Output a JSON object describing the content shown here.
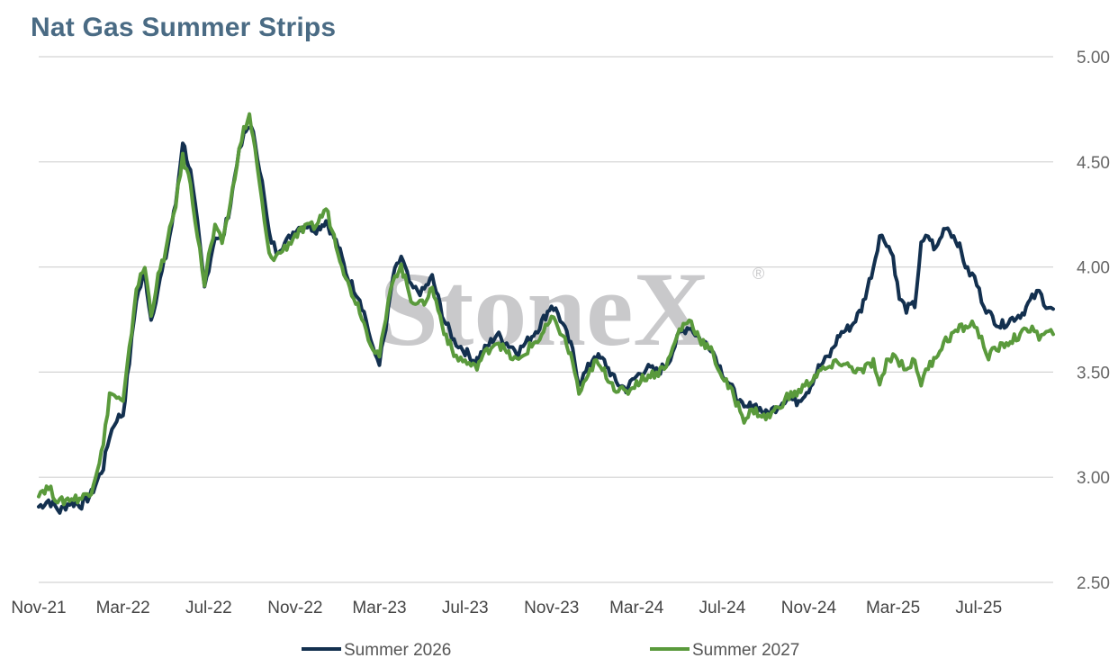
{
  "chart_data": {
    "type": "line",
    "title": "Nat Gas Summer Strips",
    "watermark": "StoneX",
    "ylim": [
      2.5,
      5.0
    ],
    "yticks": [
      "2.50",
      "3.00",
      "3.50",
      "4.00",
      "4.50",
      "5.00"
    ],
    "y_axis_side": "right",
    "grid": "horizontal",
    "legend_position": "bottom",
    "x_labels": [
      "Nov-21",
      "Mar-22",
      "Jul-22",
      "Nov-22",
      "Mar-23",
      "Jul-23",
      "Nov-23",
      "Mar-24",
      "Jul-24",
      "Nov-24",
      "Mar-25",
      "Jul-25"
    ],
    "x_start": "2021-11-01",
    "x_end": "2025-10-15",
    "series": [
      {
        "name": "Summer 2026",
        "color": "#13304f",
        "points": [
          [
            "2021-11-01",
            2.86
          ],
          [
            "2021-11-15",
            2.89
          ],
          [
            "2021-12-01",
            2.84
          ],
          [
            "2021-12-15",
            2.88
          ],
          [
            "2022-01-01",
            2.87
          ],
          [
            "2022-01-15",
            2.92
          ],
          [
            "2022-02-01",
            3.05
          ],
          [
            "2022-02-10",
            3.2
          ],
          [
            "2022-02-20",
            3.28
          ],
          [
            "2022-03-01",
            3.3
          ],
          [
            "2022-03-10",
            3.55
          ],
          [
            "2022-03-20",
            3.85
          ],
          [
            "2022-04-01",
            3.97
          ],
          [
            "2022-04-10",
            3.75
          ],
          [
            "2022-04-20",
            3.9
          ],
          [
            "2022-05-01",
            4.05
          ],
          [
            "2022-05-15",
            4.3
          ],
          [
            "2022-05-25",
            4.6
          ],
          [
            "2022-06-05",
            4.45
          ],
          [
            "2022-06-15",
            4.2
          ],
          [
            "2022-06-25",
            3.9
          ],
          [
            "2022-07-01",
            4.0
          ],
          [
            "2022-07-10",
            4.15
          ],
          [
            "2022-07-20",
            4.12
          ],
          [
            "2022-08-01",
            4.3
          ],
          [
            "2022-08-10",
            4.5
          ],
          [
            "2022-08-20",
            4.62
          ],
          [
            "2022-08-28",
            4.68
          ],
          [
            "2022-09-05",
            4.6
          ],
          [
            "2022-09-15",
            4.4
          ],
          [
            "2022-09-25",
            4.15
          ],
          [
            "2022-10-05",
            4.08
          ],
          [
            "2022-10-20",
            4.12
          ],
          [
            "2022-11-01",
            4.18
          ],
          [
            "2022-11-15",
            4.2
          ],
          [
            "2022-12-01",
            4.18
          ],
          [
            "2022-12-15",
            4.22
          ],
          [
            "2023-01-01",
            4.1
          ],
          [
            "2023-01-15",
            3.95
          ],
          [
            "2023-02-01",
            3.85
          ],
          [
            "2023-02-10",
            3.75
          ],
          [
            "2023-02-20",
            3.6
          ],
          [
            "2023-03-01",
            3.55
          ],
          [
            "2023-03-10",
            3.7
          ],
          [
            "2023-03-20",
            3.95
          ],
          [
            "2023-04-01",
            4.05
          ],
          [
            "2023-04-15",
            3.9
          ],
          [
            "2023-05-01",
            3.88
          ],
          [
            "2023-05-15",
            3.95
          ],
          [
            "2023-06-01",
            3.75
          ],
          [
            "2023-06-15",
            3.65
          ],
          [
            "2023-07-01",
            3.6
          ],
          [
            "2023-07-15",
            3.55
          ],
          [
            "2023-08-01",
            3.62
          ],
          [
            "2023-08-15",
            3.68
          ],
          [
            "2023-09-01",
            3.63
          ],
          [
            "2023-09-15",
            3.6
          ],
          [
            "2023-10-01",
            3.66
          ],
          [
            "2023-10-15",
            3.72
          ],
          [
            "2023-11-01",
            3.82
          ],
          [
            "2023-11-10",
            3.78
          ],
          [
            "2023-11-20",
            3.7
          ],
          [
            "2023-12-01",
            3.6
          ],
          [
            "2023-12-10",
            3.45
          ],
          [
            "2023-12-20",
            3.5
          ],
          [
            "2024-01-01",
            3.58
          ],
          [
            "2024-01-15",
            3.55
          ],
          [
            "2024-02-01",
            3.45
          ],
          [
            "2024-02-15",
            3.42
          ],
          [
            "2024-03-01",
            3.48
          ],
          [
            "2024-03-15",
            3.52
          ],
          [
            "2024-04-01",
            3.5
          ],
          [
            "2024-04-15",
            3.55
          ],
          [
            "2024-05-01",
            3.68
          ],
          [
            "2024-05-15",
            3.72
          ],
          [
            "2024-06-01",
            3.65
          ],
          [
            "2024-06-15",
            3.62
          ],
          [
            "2024-07-01",
            3.5
          ],
          [
            "2024-07-15",
            3.42
          ],
          [
            "2024-08-01",
            3.32
          ],
          [
            "2024-08-15",
            3.35
          ],
          [
            "2024-09-01",
            3.3
          ],
          [
            "2024-09-15",
            3.33
          ],
          [
            "2024-10-01",
            3.38
          ],
          [
            "2024-10-15",
            3.36
          ],
          [
            "2024-11-01",
            3.42
          ],
          [
            "2024-11-15",
            3.52
          ],
          [
            "2024-12-01",
            3.58
          ],
          [
            "2024-12-15",
            3.68
          ],
          [
            "2025-01-01",
            3.72
          ],
          [
            "2025-01-15",
            3.8
          ],
          [
            "2025-02-01",
            4.0
          ],
          [
            "2025-02-10",
            4.15
          ],
          [
            "2025-02-20",
            4.12
          ],
          [
            "2025-03-01",
            4.05
          ],
          [
            "2025-03-10",
            3.85
          ],
          [
            "2025-03-20",
            3.8
          ],
          [
            "2025-04-01",
            3.82
          ],
          [
            "2025-04-10",
            4.1
          ],
          [
            "2025-04-20",
            4.15
          ],
          [
            "2025-05-01",
            4.08
          ],
          [
            "2025-05-15",
            4.2
          ],
          [
            "2025-06-01",
            4.12
          ],
          [
            "2025-06-15",
            3.98
          ],
          [
            "2025-06-25",
            3.95
          ],
          [
            "2025-07-05",
            3.85
          ],
          [
            "2025-07-15",
            3.78
          ],
          [
            "2025-08-01",
            3.72
          ],
          [
            "2025-08-15",
            3.75
          ],
          [
            "2025-09-01",
            3.78
          ],
          [
            "2025-09-15",
            3.85
          ],
          [
            "2025-09-25",
            3.88
          ],
          [
            "2025-10-05",
            3.82
          ],
          [
            "2025-10-15",
            3.8
          ]
        ]
      },
      {
        "name": "Summer 2027",
        "color": "#5a9a3c",
        "points": [
          [
            "2021-11-01",
            2.93
          ],
          [
            "2021-11-15",
            2.95
          ],
          [
            "2021-12-01",
            2.88
          ],
          [
            "2021-12-15",
            2.9
          ],
          [
            "2022-01-01",
            2.9
          ],
          [
            "2022-01-15",
            2.94
          ],
          [
            "2022-02-01",
            3.15
          ],
          [
            "2022-02-10",
            3.4
          ],
          [
            "2022-02-20",
            3.38
          ],
          [
            "2022-03-01",
            3.35
          ],
          [
            "2022-03-10",
            3.6
          ],
          [
            "2022-03-20",
            3.9
          ],
          [
            "2022-04-01",
            4.0
          ],
          [
            "2022-04-10",
            3.78
          ],
          [
            "2022-04-20",
            3.95
          ],
          [
            "2022-05-01",
            4.08
          ],
          [
            "2022-05-15",
            4.3
          ],
          [
            "2022-05-25",
            4.52
          ],
          [
            "2022-06-05",
            4.4
          ],
          [
            "2022-06-15",
            4.15
          ],
          [
            "2022-06-25",
            3.92
          ],
          [
            "2022-07-01",
            4.05
          ],
          [
            "2022-07-10",
            4.18
          ],
          [
            "2022-07-20",
            4.12
          ],
          [
            "2022-08-01",
            4.3
          ],
          [
            "2022-08-10",
            4.5
          ],
          [
            "2022-08-20",
            4.65
          ],
          [
            "2022-08-28",
            4.72
          ],
          [
            "2022-09-05",
            4.55
          ],
          [
            "2022-09-15",
            4.3
          ],
          [
            "2022-09-25",
            4.05
          ],
          [
            "2022-10-05",
            4.05
          ],
          [
            "2022-10-20",
            4.1
          ],
          [
            "2022-11-01",
            4.15
          ],
          [
            "2022-11-15",
            4.18
          ],
          [
            "2022-12-01",
            4.2
          ],
          [
            "2022-12-15",
            4.28
          ],
          [
            "2023-01-01",
            4.08
          ],
          [
            "2023-01-15",
            3.92
          ],
          [
            "2023-02-01",
            3.8
          ],
          [
            "2023-02-10",
            3.7
          ],
          [
            "2023-02-20",
            3.62
          ],
          [
            "2023-03-01",
            3.58
          ],
          [
            "2023-03-10",
            3.75
          ],
          [
            "2023-03-20",
            3.95
          ],
          [
            "2023-04-01",
            4.0
          ],
          [
            "2023-04-15",
            3.85
          ],
          [
            "2023-05-01",
            3.82
          ],
          [
            "2023-05-15",
            3.9
          ],
          [
            "2023-06-01",
            3.7
          ],
          [
            "2023-06-15",
            3.58
          ],
          [
            "2023-07-01",
            3.55
          ],
          [
            "2023-07-15",
            3.52
          ],
          [
            "2023-08-01",
            3.6
          ],
          [
            "2023-08-15",
            3.65
          ],
          [
            "2023-09-01",
            3.58
          ],
          [
            "2023-09-15",
            3.55
          ],
          [
            "2023-10-01",
            3.62
          ],
          [
            "2023-10-15",
            3.66
          ],
          [
            "2023-11-01",
            3.75
          ],
          [
            "2023-11-10",
            3.72
          ],
          [
            "2023-11-20",
            3.65
          ],
          [
            "2023-12-01",
            3.55
          ],
          [
            "2023-12-10",
            3.4
          ],
          [
            "2023-12-20",
            3.45
          ],
          [
            "2024-01-01",
            3.55
          ],
          [
            "2024-01-15",
            3.5
          ],
          [
            "2024-02-01",
            3.42
          ],
          [
            "2024-02-15",
            3.4
          ],
          [
            "2024-03-01",
            3.45
          ],
          [
            "2024-03-15",
            3.48
          ],
          [
            "2024-04-01",
            3.5
          ],
          [
            "2024-04-15",
            3.55
          ],
          [
            "2024-05-01",
            3.7
          ],
          [
            "2024-05-15",
            3.75
          ],
          [
            "2024-06-01",
            3.65
          ],
          [
            "2024-06-15",
            3.6
          ],
          [
            "2024-07-01",
            3.48
          ],
          [
            "2024-07-15",
            3.4
          ],
          [
            "2024-08-01",
            3.28
          ],
          [
            "2024-08-15",
            3.32
          ],
          [
            "2024-09-01",
            3.28
          ],
          [
            "2024-09-15",
            3.32
          ],
          [
            "2024-10-01",
            3.38
          ],
          [
            "2024-10-15",
            3.4
          ],
          [
            "2024-11-01",
            3.45
          ],
          [
            "2024-11-15",
            3.5
          ],
          [
            "2024-12-01",
            3.52
          ],
          [
            "2024-12-15",
            3.55
          ],
          [
            "2025-01-01",
            3.52
          ],
          [
            "2025-01-15",
            3.5
          ],
          [
            "2025-02-01",
            3.55
          ],
          [
            "2025-02-10",
            3.42
          ],
          [
            "2025-02-20",
            3.55
          ],
          [
            "2025-03-01",
            3.58
          ],
          [
            "2025-03-10",
            3.55
          ],
          [
            "2025-03-20",
            3.52
          ],
          [
            "2025-04-01",
            3.55
          ],
          [
            "2025-04-10",
            3.45
          ],
          [
            "2025-04-20",
            3.52
          ],
          [
            "2025-05-01",
            3.58
          ],
          [
            "2025-05-15",
            3.65
          ],
          [
            "2025-06-01",
            3.7
          ],
          [
            "2025-06-15",
            3.72
          ],
          [
            "2025-06-25",
            3.73
          ],
          [
            "2025-07-05",
            3.65
          ],
          [
            "2025-07-15",
            3.58
          ],
          [
            "2025-08-01",
            3.62
          ],
          [
            "2025-08-15",
            3.65
          ],
          [
            "2025-09-01",
            3.68
          ],
          [
            "2025-09-15",
            3.72
          ],
          [
            "2025-09-25",
            3.66
          ],
          [
            "2025-10-05",
            3.68
          ],
          [
            "2025-10-15",
            3.68
          ]
        ]
      }
    ]
  }
}
